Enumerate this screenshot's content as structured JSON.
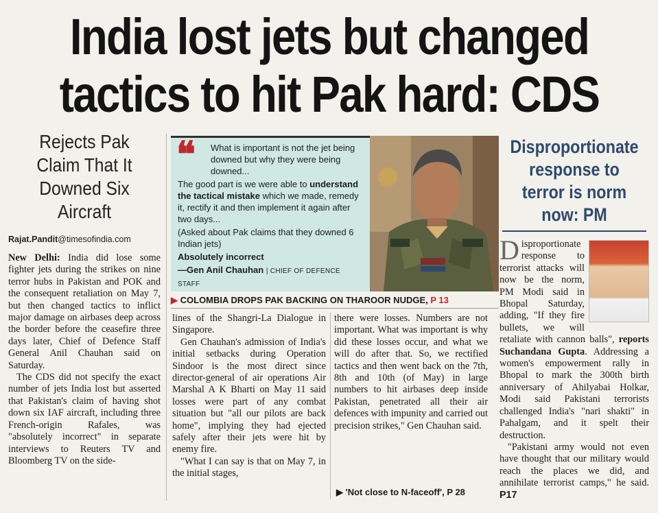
{
  "headline": {
    "line1": "India lost jets but changed",
    "line2": "tactics to hit Pak hard: CDS"
  },
  "left": {
    "deck": "Rejects Pak Claim That It Downed Six Aircraft",
    "byline_name": "Rajat.Pandit",
    "byline_domain": "@timesofindia.com",
    "dateline": "New Delhi:",
    "p1": "India did lose some fighter jets during the strikes on nine terror hubs in Pakistan and POK and the consequent retaliation on May 7, but then changed tactics to inflict major damage on airbases deep across the border before the ceasefire three days later, Chief of Defence Staff General Anil Chauhan said on Saturday.",
    "p2": "The CDS did not specify the exact number of jets India lost but asserted that Pakistan's claim of having shot down six IAF aircraft, including three French-origin Rafales, was \"absolutely incorrect\" in separate interviews to Reuters TV and Bloomberg TV on the side-"
  },
  "quote": {
    "l1": "What is important is not the jet being downed but why they were being downed...",
    "l2a": "The good part is we were able to ",
    "l2b": "understand the tactical mistake",
    "l2c": " which we made, remedy it, rectify it and then implement it again after two days...",
    "l3": "(Asked about Pak claims that they downed 6 Indian jets)",
    "l4": "Absolutely incorrect",
    "attrib": "—Gen Anil Chauhan",
    "role": "| CHIEF OF DEFENCE STAFF"
  },
  "refer": {
    "text": "COLOMBIA DROPS PAK BACKING ON THAROOR NUDGE,",
    "page": "P 13",
    "small": "'Not close to N-faceoff',",
    "small_page": "P 28"
  },
  "mid": {
    "c1p1": "lines of the Shangri-La Dialogue in Singapore.",
    "c1p2": "Gen Chauhan's admission of India's initial setbacks during Operation Sindoor is the most direct since director-general of air operations Air Marshal A K Bharti on May 11 said losses were part of any combat situation but \"all our pilots are back home\", implying they had ejected safely after their jets were hit by enemy fire.",
    "c1p3": "\"What I can say is that on May 7, in the initial stages,",
    "c2p1": "there were losses. Numbers are not important. What was important is why did these losses occur, and what we will do after that. So, we rectified tactics and then went back on the 7th, 8th and 10th (of May) in large numbers to hit airbases deep inside Pakistan, penetrated all their air defences with impunity and carried out precision strikes,\" Gen Chauhan said."
  },
  "right": {
    "head": "Disproportionate response to terror is norm now: PM",
    "dropcap": "D",
    "p1a": "isproportionate response to terrorist attacks will now be the norm, PM Modi said in Bhopal Saturday, adding, \"If they fire bullets, we will retaliate with cannon balls\", ",
    "reports": "reports Suchandana Gupta",
    "p1b": ". Addressing a women's empowerment rally in Bhopal to mark the 300th birth anniversary of Ahilyabai Holkar, Modi said Pakistani terrorists challenged India's \"nari shakti\" in Pahalgam, and it spelt their destruction.",
    "p2": "\"Pakistani army would not even have thought that our military would reach the places we did, and annihilate terrorist camps,\" he said.",
    "page_ref": "P17"
  }
}
